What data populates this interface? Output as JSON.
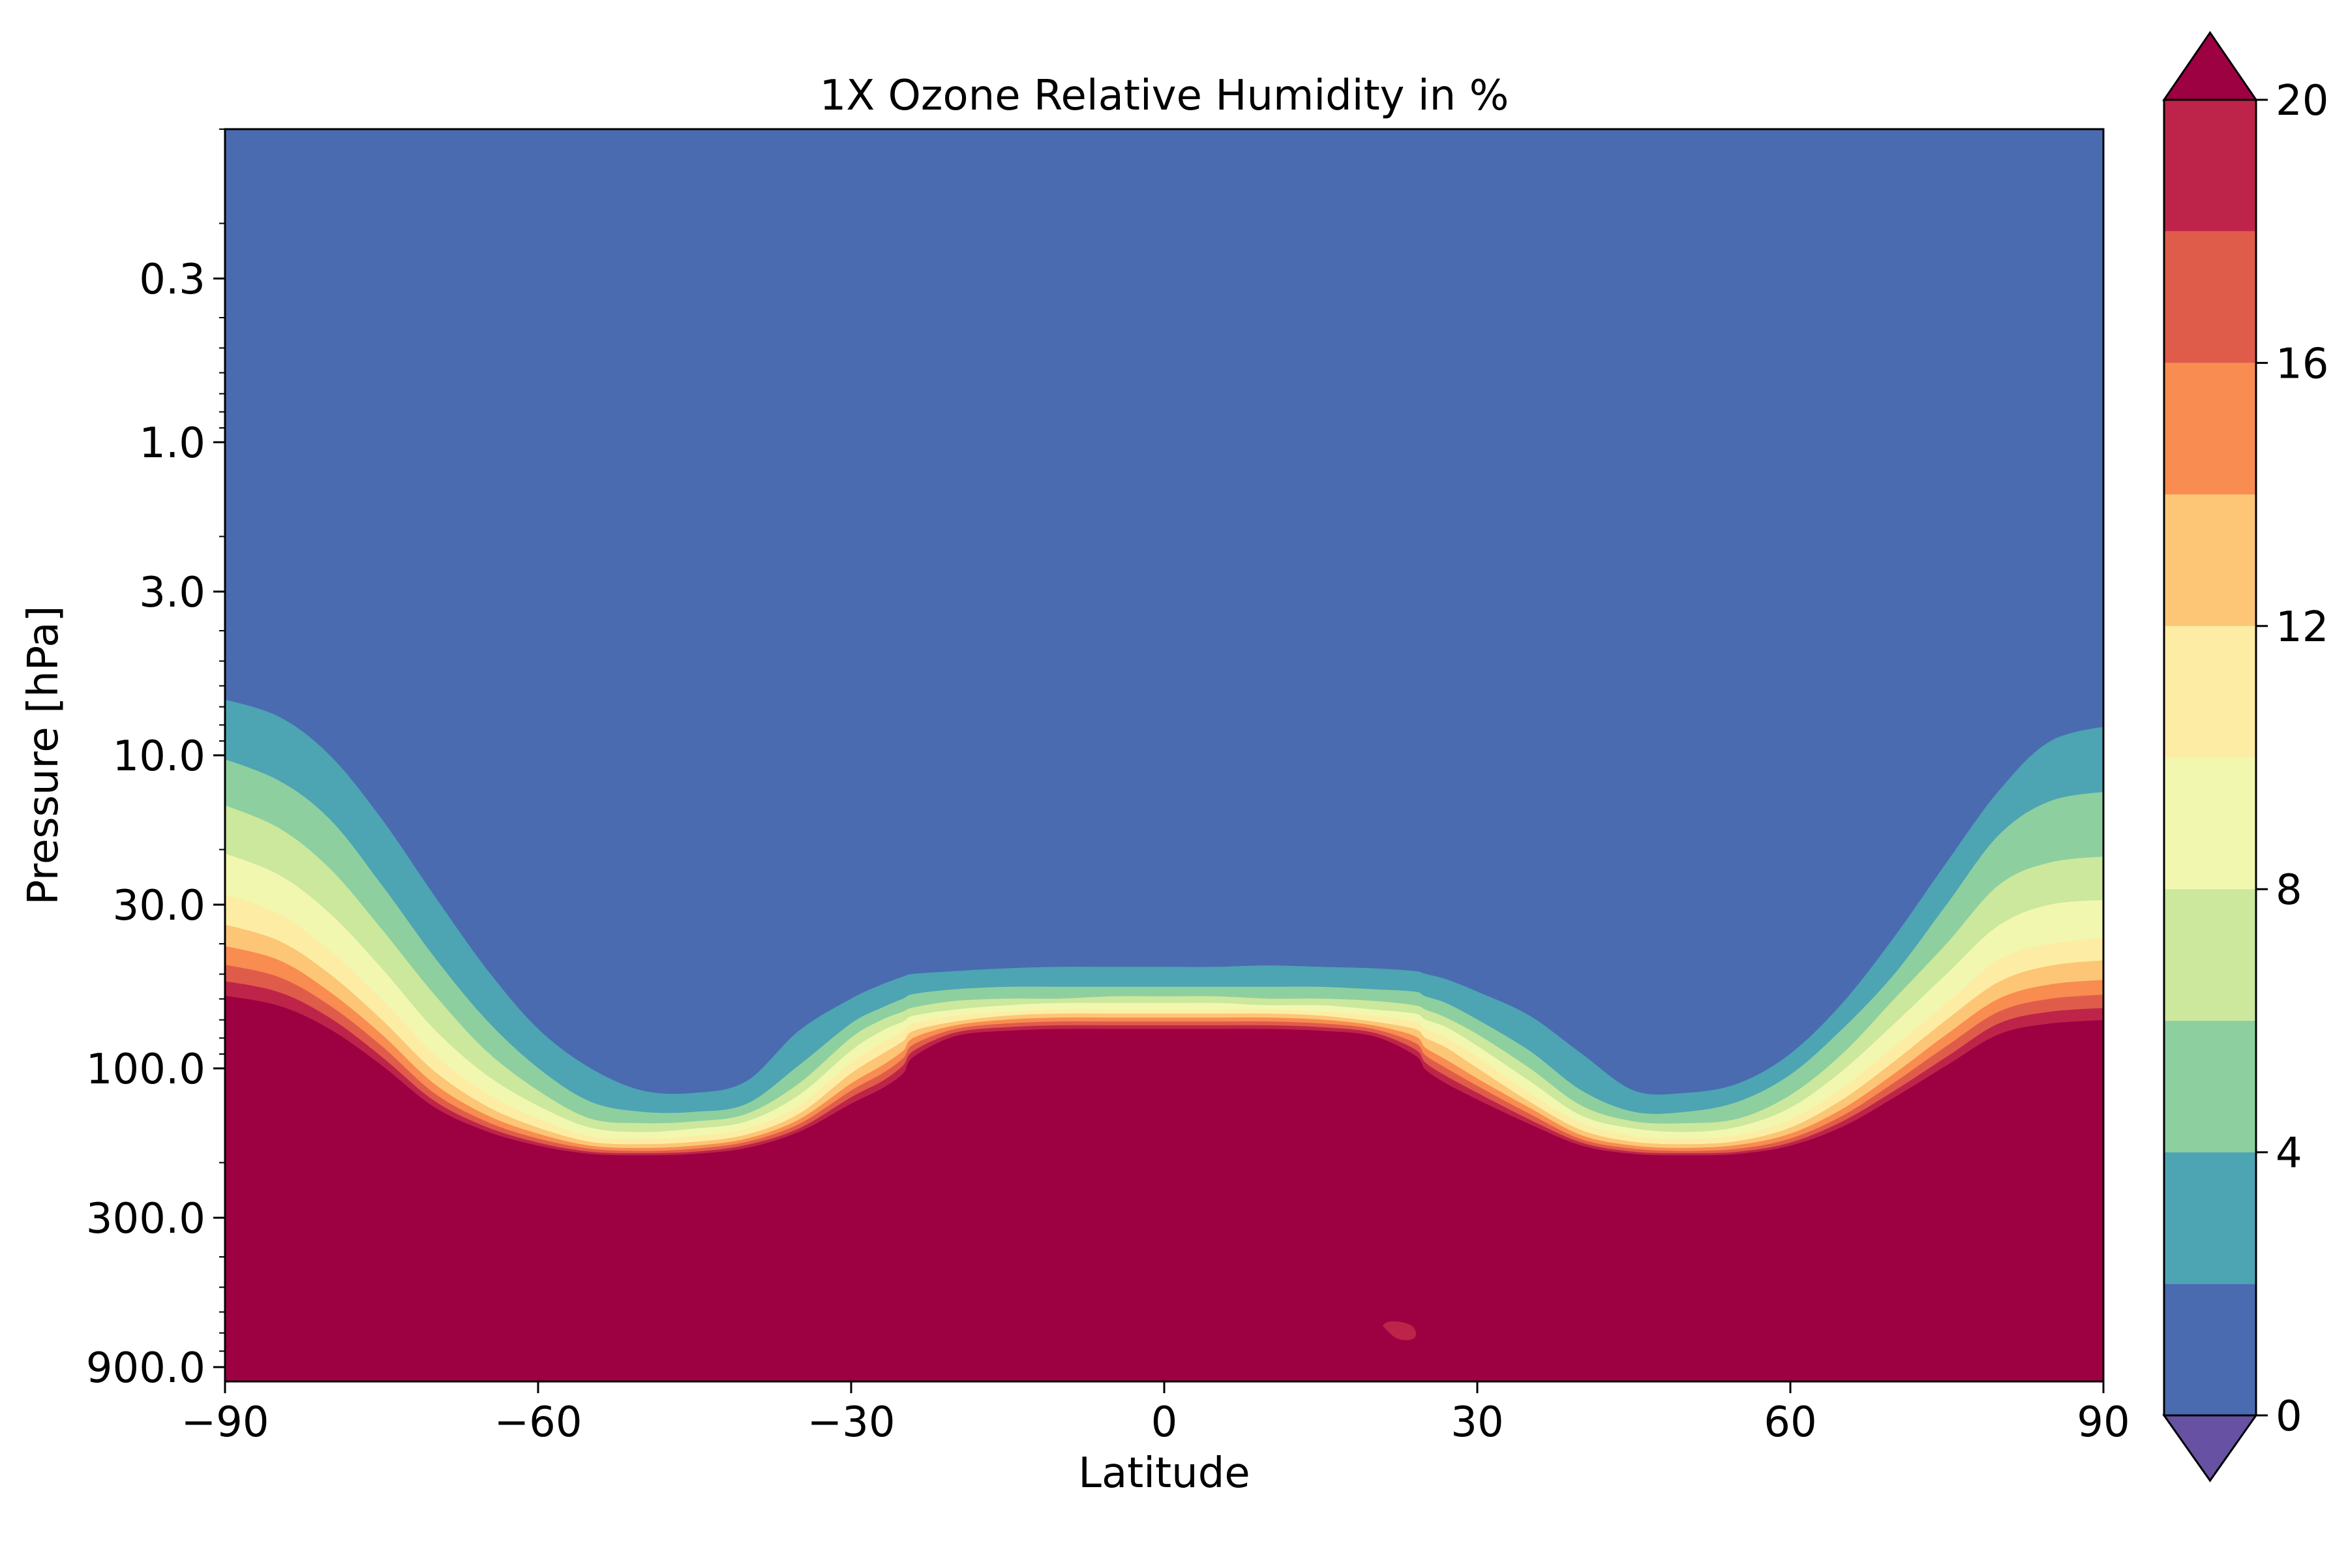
{
  "chart_data": {
    "type": "contourf",
    "title": "1X Ozone Relative Humidity in %",
    "xlabel": "Latitude",
    "ylabel": "Pressure [hPa]",
    "xlim": [
      -90,
      90
    ],
    "x_ticks": [
      -90,
      -60,
      -30,
      0,
      30,
      60,
      90
    ],
    "x_tick_labels": [
      "−90",
      "−60",
      "−30",
      "0",
      "30",
      "60",
      "90"
    ],
    "ylim": [
      0.1,
      1000
    ],
    "yscale": "log",
    "y_inverted": true,
    "y_ticks": [
      0.3,
      1.0,
      3.0,
      10.0,
      30.0,
      100.0,
      300.0,
      900.0
    ],
    "y_tick_labels": [
      "0.3",
      "1.0",
      "3.0",
      "10.0",
      "30.0",
      "100.0",
      "300.0",
      "900.0"
    ],
    "levels": [
      0,
      2,
      4,
      6,
      8,
      10,
      12,
      14,
      16,
      18,
      20
    ],
    "extend": "both",
    "colors": [
      "#4a6bb0",
      "#4da4b3",
      "#8ecf9f",
      "#cbe89d",
      "#f2f7b0",
      "#fdeda4",
      "#fcc676",
      "#f88c51",
      "#e05c4a",
      "#be2449",
      "#9e0142"
    ],
    "under_color": "#6751a2",
    "over_color": "#9e0142",
    "colorbar": {
      "ticks": [
        0,
        4,
        8,
        12,
        16,
        20
      ],
      "tick_labels": [
        "0",
        "4",
        "8",
        "12",
        "16",
        "20"
      ],
      "placement": "right"
    },
    "contour_boundaries_hpa": {
      "lat": [
        -90,
        -85,
        -80,
        -75,
        -70,
        -65,
        -60,
        -55,
        -50,
        -45,
        -40,
        -35,
        -30,
        -27,
        -25,
        -24,
        -20,
        -15,
        -10,
        -5,
        0,
        5,
        10,
        15,
        20,
        24,
        25,
        27,
        30,
        35,
        40,
        45,
        50,
        55,
        60,
        65,
        70,
        75,
        80,
        85,
        90
      ],
      "level_2": [
        6.5,
        7.5,
        10,
        16,
        28,
        48,
        75,
        100,
        118,
        120,
        110,
        76,
        60,
        54,
        51,
        50,
        49,
        48,
        47.5,
        47.5,
        47.5,
        47.5,
        47,
        47.5,
        48,
        49,
        50,
        52,
        57,
        68,
        90,
        118,
        120,
        112,
        90,
        62,
        38,
        22,
        13,
        9,
        8
      ],
      "level_4": [
        10,
        12,
        16,
        26,
        44,
        70,
        100,
        128,
        138,
        138,
        130,
        98,
        72,
        64,
        60,
        58,
        56,
        55,
        55,
        55,
        55,
        55,
        55,
        55,
        56,
        57,
        59,
        62,
        70,
        88,
        118,
        138,
        138,
        128,
        105,
        75,
        50,
        30,
        18,
        14,
        13
      ],
      "level_6": [
        14,
        17,
        23,
        36,
        58,
        88,
        118,
        145,
        150,
        148,
        140,
        112,
        80,
        70,
        66,
        64,
        61,
        60,
        60,
        59,
        59,
        59,
        60,
        60,
        61,
        63,
        65,
        69,
        78,
        100,
        132,
        148,
        150,
        145,
        122,
        90,
        60,
        40,
        26,
        22,
        21
      ],
      "level_8": [
        20,
        24,
        32,
        48,
        75,
        105,
        132,
        155,
        160,
        156,
        148,
        122,
        88,
        76,
        71,
        68,
        65,
        63,
        62,
        62,
        62,
        62,
        63,
        63,
        65,
        67,
        70,
        74,
        85,
        110,
        142,
        156,
        160,
        154,
        134,
        102,
        72,
        50,
        35,
        30,
        29
      ],
      "level_10": [
        27,
        32,
        42,
        60,
        90,
        120,
        145,
        165,
        168,
        165,
        156,
        132,
        96,
        83,
        76,
        72,
        68,
        66,
        65,
        65,
        65,
        65,
        65,
        66,
        68,
        71,
        75,
        80,
        92,
        120,
        150,
        165,
        168,
        164,
        146,
        116,
        85,
        62,
        45,
        40,
        38
      ],
      "level_12": [
        34,
        39,
        50,
        70,
        102,
        132,
        155,
        172,
        175,
        172,
        163,
        140,
        104,
        90,
        82,
        76,
        71,
        68,
        67,
        67,
        67,
        67,
        67,
        68,
        71,
        75,
        80,
        86,
        100,
        128,
        158,
        172,
        175,
        171,
        155,
        126,
        95,
        70,
        53,
        47,
        45
      ],
      "level_14": [
        40,
        45,
        57,
        78,
        112,
        141,
        162,
        177,
        180,
        177,
        168,
        146,
        112,
        98,
        88,
        80,
        73,
        70,
        69,
        69,
        69,
        69,
        69,
        70,
        73,
        79,
        86,
        94,
        108,
        134,
        164,
        177,
        180,
        176,
        162,
        135,
        104,
        78,
        60,
        54,
        52
      ],
      "level_16": [
        46,
        51,
        63,
        85,
        120,
        148,
        168,
        181,
        184,
        181,
        172,
        151,
        118,
        104,
        93,
        84,
        75,
        72,
        71,
        71,
        71,
        71,
        71,
        72,
        75,
        83,
        91,
        100,
        114,
        140,
        169,
        181,
        184,
        181,
        168,
        142,
        111,
        85,
        66,
        60,
        58
      ],
      "level_18": [
        52,
        57,
        69,
        92,
        127,
        154,
        173,
        185,
        187,
        185,
        176,
        156,
        124,
        110,
        98,
        88,
        77,
        74,
        73,
        73,
        73,
        73,
        73,
        74,
        77,
        87,
        96,
        106,
        120,
        146,
        173,
        185,
        187,
        185,
        173,
        148,
        118,
        92,
        72,
        66,
        64
      ],
      "level_20": [
        58,
        63,
        75,
        98,
        133,
        159,
        177,
        188,
        190,
        188,
        180,
        160,
        130,
        116,
        104,
        92,
        79,
        76,
        75,
        75,
        75,
        75,
        75,
        76,
        79,
        91,
        101,
        112,
        126,
        151,
        177,
        188,
        190,
        188,
        177,
        154,
        124,
        98,
        78,
        72,
        70
      ]
    },
    "annotations": [
      {
        "type": "small_patch",
        "lat": 22.5,
        "pressure_hpa": 690,
        "level_range": [
          18,
          20
        ]
      }
    ]
  }
}
